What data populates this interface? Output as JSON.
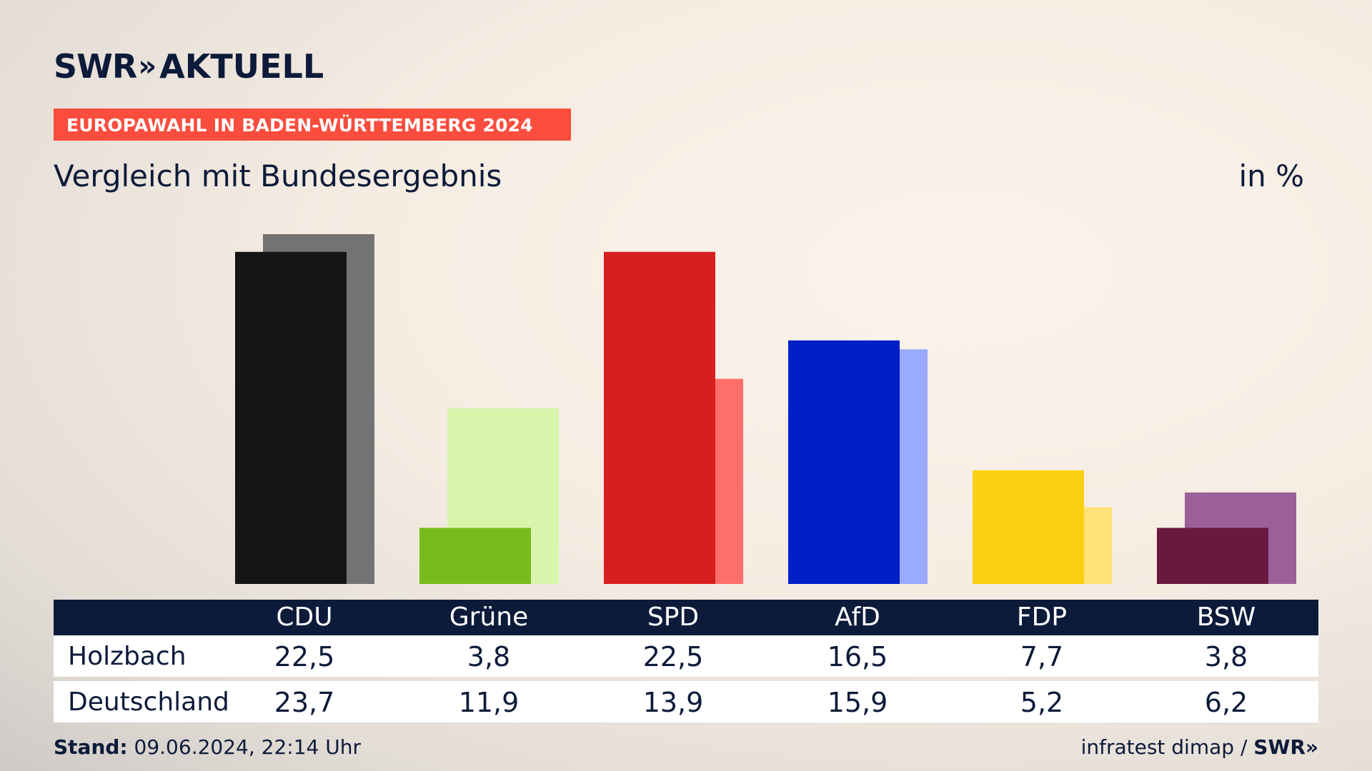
{
  "brand": {
    "swr": "SWR",
    "arrows": "»",
    "name": "AKTUELL"
  },
  "banner": {
    "text": "EUROPAWAHL IN BADEN-WÜRTTEMBERG 2024",
    "color": "#fa4d3e"
  },
  "subtitle": "Vergleich mit Bundesergebnis",
  "unit": "in %",
  "chart_data": {
    "type": "bar",
    "title": "Vergleich mit Bundesergebnis",
    "unit": "in %",
    "categories": [
      "CDU",
      "Grüne",
      "SPD",
      "AfD",
      "FDP",
      "BSW"
    ],
    "series": [
      {
        "name": "Holzbach",
        "values": [
          22.5,
          3.8,
          22.5,
          16.5,
          7.7,
          3.8
        ],
        "colors": [
          "#151515",
          "#78bc1c",
          "#d71f1f",
          "#0020c7",
          "#fccf10",
          "#6b1840"
        ]
      },
      {
        "name": "Deutschland",
        "values": [
          23.7,
          11.9,
          13.9,
          15.9,
          5.2,
          6.2
        ],
        "colors": [
          "#737373",
          "#d8f5ac",
          "#ff6f6a",
          "#9aaafc",
          "#ffe278",
          "#9c5f99"
        ]
      }
    ],
    "ylim": [
      0,
      23.7
    ],
    "grid": false
  },
  "table": {
    "rows": [
      {
        "label": "Holzbach",
        "values": [
          "22,5",
          "3,8",
          "22,5",
          "16,5",
          "7,7",
          "3,8"
        ]
      },
      {
        "label": "Deutschland",
        "values": [
          "23,7",
          "11,9",
          "13,9",
          "15,9",
          "5,2",
          "6,2"
        ]
      }
    ]
  },
  "footer": {
    "stand_label": "Stand:",
    "stand_value": "09.06.2024, 22:14 Uhr",
    "source": "infratest dimap /",
    "source_brand": "SWR»"
  }
}
